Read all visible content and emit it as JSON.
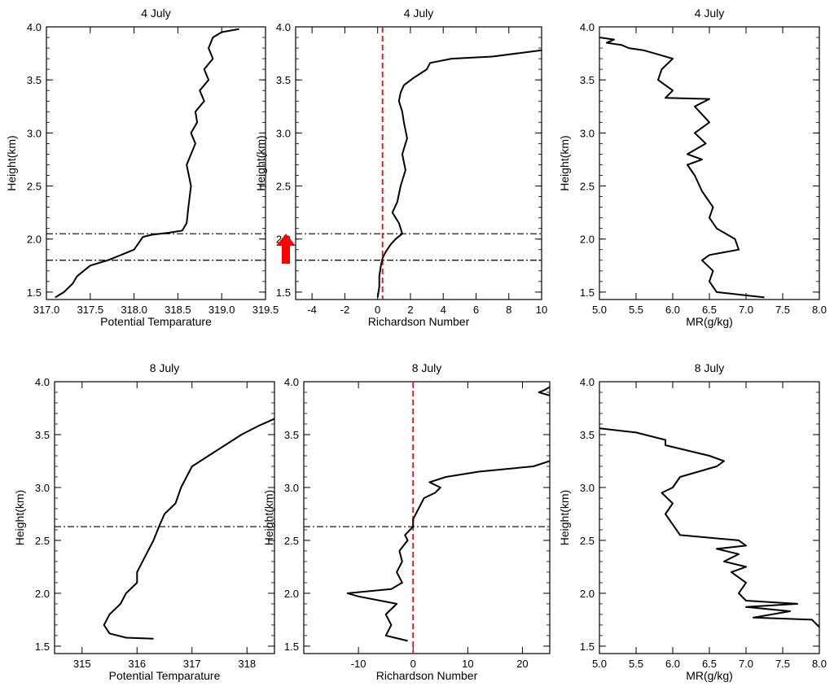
{
  "figure": {
    "arrow_color": "#ff0000",
    "refline_color": "#e02020",
    "line_color": "#000000"
  },
  "chart_data": [
    {
      "type": "line",
      "title": "4 July",
      "xlabel": "Potential Temparature",
      "ylabel": "Height(km)",
      "xlim": [
        317.0,
        319.5
      ],
      "ylim": [
        1.43,
        4.0
      ],
      "xticks": [
        "317.0",
        "317.5",
        "318.0",
        "318.5",
        "319.0",
        "319.5"
      ],
      "yticks": [
        "1.5",
        "2.0",
        "2.5",
        "3.0",
        "3.5",
        "4.0"
      ],
      "hlines": [
        2.05,
        1.8
      ],
      "vline": null,
      "series": [
        {
          "name": "theta",
          "x": [
            317.1,
            317.2,
            317.3,
            317.35,
            317.5,
            317.7,
            317.85,
            318.0,
            318.05,
            318.1,
            318.2,
            318.4,
            318.55,
            318.6,
            318.62,
            318.65,
            318.6,
            318.7,
            318.65,
            318.72,
            318.7,
            318.8,
            318.75,
            318.85,
            318.8,
            318.9,
            318.85,
            318.9,
            319.0,
            319.2
          ],
          "y": [
            1.45,
            1.5,
            1.58,
            1.65,
            1.75,
            1.8,
            1.85,
            1.9,
            1.96,
            2.02,
            2.04,
            2.06,
            2.08,
            2.15,
            2.3,
            2.5,
            2.7,
            2.9,
            3.0,
            3.1,
            3.2,
            3.3,
            3.4,
            3.5,
            3.6,
            3.7,
            3.8,
            3.9,
            3.95,
            3.98
          ]
        }
      ]
    },
    {
      "type": "line",
      "title": "4 July",
      "xlabel": "Richardson Number",
      "ylabel": "Height(km)",
      "xlim": [
        -5,
        10
      ],
      "ylim": [
        1.43,
        4.0
      ],
      "xticks": [
        "-4",
        "-2",
        "0",
        "2",
        "4",
        "6",
        "8",
        "10"
      ],
      "yticks": [
        "1.5",
        "2.0",
        "2.5",
        "3.0",
        "3.5",
        "4.0"
      ],
      "hlines": [
        2.05,
        1.8
      ],
      "vline": 0.3,
      "series": [
        {
          "name": "Ri",
          "x": [
            0.0,
            0.1,
            0.1,
            0.2,
            0.3,
            0.5,
            0.8,
            1.1,
            1.5,
            1.3,
            0.9,
            1.2,
            1.4,
            1.7,
            1.5,
            1.8,
            1.6,
            1.5,
            1.3,
            1.4,
            1.6,
            2.2,
            3.0,
            3.2,
            4.5,
            7.0,
            10.0
          ],
          "y": [
            1.45,
            1.55,
            1.65,
            1.75,
            1.82,
            1.88,
            1.95,
            2.0,
            2.05,
            2.15,
            2.25,
            2.35,
            2.5,
            2.65,
            2.8,
            2.95,
            3.1,
            3.2,
            3.3,
            3.38,
            3.45,
            3.52,
            3.6,
            3.66,
            3.7,
            3.72,
            3.78
          ]
        }
      ]
    },
    {
      "type": "line",
      "title": "4 July",
      "xlabel": "MR(g/kg)",
      "ylabel": "Height(km)",
      "xlim": [
        5.0,
        8.0
      ],
      "ylim": [
        1.43,
        4.0
      ],
      "xticks": [
        "5.0",
        "5.5",
        "6.0",
        "6.5",
        "7.0",
        "7.5",
        "8.0"
      ],
      "yticks": [
        "1.5",
        "2.0",
        "2.5",
        "3.0",
        "3.5",
        "4.0"
      ],
      "hlines": [],
      "vline": null,
      "series": [
        {
          "name": "MR",
          "x": [
            7.25,
            6.6,
            6.5,
            6.55,
            6.4,
            6.5,
            6.9,
            6.85,
            6.6,
            6.5,
            6.55,
            6.4,
            6.3,
            6.2,
            6.4,
            6.2,
            6.45,
            6.3,
            6.5,
            6.3,
            6.5,
            5.9,
            6.0,
            5.8,
            5.85,
            6.0,
            5.75,
            5.6,
            5.4,
            5.3,
            5.1,
            5.2,
            5.0
          ],
          "y": [
            1.45,
            1.5,
            1.6,
            1.7,
            1.8,
            1.85,
            1.9,
            2.0,
            2.1,
            2.2,
            2.3,
            2.45,
            2.6,
            2.7,
            2.75,
            2.8,
            2.9,
            3.0,
            3.1,
            3.25,
            3.32,
            3.33,
            3.4,
            3.5,
            3.6,
            3.7,
            3.75,
            3.78,
            3.8,
            3.83,
            3.85,
            3.88,
            3.9
          ]
        }
      ]
    },
    {
      "type": "line",
      "title": "8 July",
      "xlabel": "Potential Temparature",
      "ylabel": "Height(km)",
      "xlim": [
        314.5,
        318.5
      ],
      "ylim": [
        1.43,
        4.0
      ],
      "xticks": [
        "315",
        "316",
        "317",
        "318"
      ],
      "yticks": [
        "1.5",
        "2.0",
        "2.5",
        "3.0",
        "3.5",
        "4.0"
      ],
      "hlines": [
        2.63
      ],
      "vline": null,
      "series": [
        {
          "name": "theta",
          "x": [
            316.3,
            315.8,
            315.5,
            315.4,
            315.5,
            315.7,
            315.8,
            316.0,
            316.0,
            316.1,
            316.2,
            316.3,
            316.4,
            316.5,
            316.7,
            316.8,
            316.9,
            317.0,
            317.3,
            317.6,
            317.9,
            318.2,
            318.5
          ],
          "y": [
            1.57,
            1.58,
            1.62,
            1.7,
            1.8,
            1.9,
            2.0,
            2.1,
            2.2,
            2.3,
            2.4,
            2.5,
            2.63,
            2.75,
            2.85,
            3.0,
            3.1,
            3.2,
            3.3,
            3.4,
            3.5,
            3.58,
            3.65
          ]
        }
      ]
    },
    {
      "type": "line",
      "title": "8 July",
      "xlabel": "Richardson Number",
      "ylabel": "Height(km)",
      "xlim": [
        -20,
        25
      ],
      "ylim": [
        1.43,
        4.0
      ],
      "xticks": [
        "-10",
        "0",
        "10",
        "20"
      ],
      "yticks": [
        "1.5",
        "2.0",
        "2.5",
        "3.0",
        "3.5",
        "4.0"
      ],
      "hlines": [
        2.63
      ],
      "vline": 0,
      "series": [
        {
          "name": "Ri",
          "x": [
            -1.0,
            -5.0,
            -4.0,
            -5.0,
            -3.0,
            -10.0,
            -12.0,
            -4.0,
            -2.0,
            -3.0,
            -2.0,
            -2.5,
            -1.0,
            -1.5,
            0.0,
            0.0,
            1.0,
            2.0,
            4.0,
            5.0,
            3.0,
            6.0,
            12.0,
            22.0,
            25.0
          ],
          "y": [
            1.55,
            1.6,
            1.7,
            1.8,
            1.9,
            1.97,
            2.0,
            2.04,
            2.1,
            2.2,
            2.3,
            2.4,
            2.5,
            2.55,
            2.63,
            2.7,
            2.8,
            2.9,
            2.95,
            3.0,
            3.05,
            3.1,
            3.15,
            3.2,
            3.25
          ]
        },
        {
          "name": "Ri-top",
          "x": [
            25.0,
            24.0,
            23.0,
            25.0
          ],
          "y": [
            3.95,
            3.92,
            3.9,
            3.87
          ]
        }
      ]
    },
    {
      "type": "line",
      "title": "8 July",
      "xlabel": "MR(g/kg)",
      "ylabel": "Height(km)",
      "xlim": [
        5.0,
        8.0
      ],
      "ylim": [
        1.43,
        4.0
      ],
      "xticks": [
        "5.0",
        "5.5",
        "6.0",
        "6.5",
        "7.0",
        "7.5",
        "8.0"
      ],
      "yticks": [
        "1.5",
        "2.0",
        "2.5",
        "3.0",
        "3.5",
        "4.0"
      ],
      "hlines": [],
      "vline": null,
      "series": [
        {
          "name": "MR",
          "x": [
            8.0,
            7.9,
            7.1,
            7.6,
            7.0,
            7.7,
            7.0,
            6.9,
            7.0,
            6.8,
            7.0,
            6.7,
            6.9,
            6.6,
            7.0,
            6.9,
            6.1,
            6.0,
            5.9,
            6.0,
            5.85,
            6.0,
            6.1,
            6.6,
            6.7,
            6.5,
            5.9,
            5.9,
            5.5,
            5.0
          ],
          "y": [
            1.68,
            1.75,
            1.77,
            1.83,
            1.87,
            1.9,
            1.93,
            2.0,
            2.1,
            2.2,
            2.25,
            2.3,
            2.37,
            2.42,
            2.45,
            2.5,
            2.55,
            2.65,
            2.75,
            2.85,
            2.95,
            3.0,
            3.1,
            3.2,
            3.25,
            3.3,
            3.4,
            3.45,
            3.52,
            3.56
          ]
        }
      ]
    }
  ]
}
